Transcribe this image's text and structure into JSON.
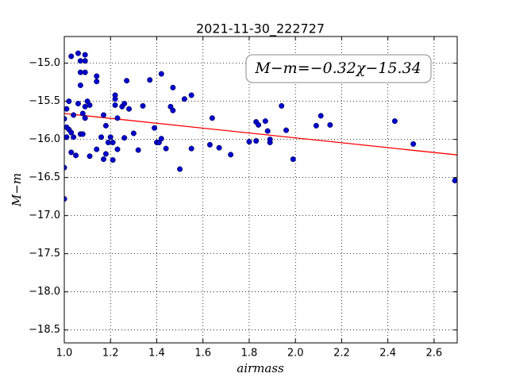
{
  "chart_data": {
    "type": "scatter",
    "title": "2021-11-30_222727",
    "x_label": "airmass",
    "y_label": "M−m",
    "annotation": "M−m=−0.32χ−15.34",
    "xlim": [
      1.0,
      2.7
    ],
    "ylim": [
      -18.67,
      -14.65
    ],
    "y_inverted": true,
    "grid": true,
    "xticks": [
      {
        "value": 1.0,
        "label": "1.0"
      },
      {
        "value": 1.2,
        "label": "1.2"
      },
      {
        "value": 1.4,
        "label": "1.4"
      },
      {
        "value": 1.6,
        "label": "1.6"
      },
      {
        "value": 1.8,
        "label": "1.8"
      },
      {
        "value": 2.0,
        "label": "2.0"
      },
      {
        "value": 2.2,
        "label": "2.2"
      },
      {
        "value": 2.4,
        "label": "2.4"
      },
      {
        "value": 2.6,
        "label": "2.6"
      }
    ],
    "yticks": [
      {
        "value": -15.0,
        "label": "−15.0"
      },
      {
        "value": -15.5,
        "label": "−15.5"
      },
      {
        "value": -16.0,
        "label": "−16.0"
      },
      {
        "value": -16.5,
        "label": "−16.5"
      },
      {
        "value": -17.0,
        "label": "−17.0"
      },
      {
        "value": -17.5,
        "label": "−17.5"
      },
      {
        "value": -18.0,
        "label": "−18.0"
      },
      {
        "value": -18.5,
        "label": "−18.5"
      }
    ],
    "fit": {
      "slope": -0.32,
      "intercept": -15.34,
      "color": "#ff0000"
    },
    "series": [
      {
        "color": "#0000cc",
        "x": [
          1.0,
          1.0,
          1.0,
          1.01,
          1.01,
          1.02,
          1.01,
          1.02,
          1.03,
          1.03,
          1.05,
          1.04,
          1.04,
          1.03,
          1.06,
          1.07,
          1.09,
          1.09,
          1.07,
          1.09,
          1.07,
          1.06,
          1.08,
          1.09,
          1.09,
          1.1,
          1.11,
          1.07,
          1.08,
          1.11,
          1.14,
          1.14,
          1.14,
          1.16,
          1.17,
          1.17,
          1.18,
          1.18,
          1.19,
          1.2,
          1.21,
          1.21,
          1.22,
          1.22,
          1.22,
          1.23,
          1.23,
          1.25,
          1.26,
          1.26,
          1.27,
          1.28,
          1.3,
          1.32,
          1.34,
          1.37,
          1.39,
          1.4,
          1.41,
          1.42,
          1.42,
          1.44,
          1.47,
          1.47,
          1.46,
          1.5,
          1.52,
          1.55,
          1.55,
          1.63,
          1.64,
          1.67,
          1.72,
          1.8,
          1.83,
          1.83,
          1.84,
          1.87,
          1.88,
          1.89,
          1.89,
          1.94,
          1.96,
          1.99,
          2.09,
          2.11,
          2.15,
          2.43,
          2.51,
          2.69
        ],
        "values": [
          -16.78,
          -16.37,
          -15.73,
          -15.97,
          -15.84,
          -15.87,
          -15.6,
          -15.5,
          -15.91,
          -16.17,
          -16.21,
          -15.68,
          -15.97,
          -14.91,
          -14.87,
          -14.97,
          -14.89,
          -14.97,
          -15.12,
          -15.12,
          -15.29,
          -15.53,
          -15.66,
          -15.72,
          -15.57,
          -15.5,
          -15.55,
          -15.93,
          -15.93,
          -16.22,
          -15.17,
          -15.24,
          -16.13,
          -15.97,
          -16.26,
          -15.68,
          -15.82,
          -16.19,
          -16.04,
          -15.97,
          -16.04,
          -16.27,
          -15.42,
          -15.47,
          -15.55,
          -16.13,
          -15.72,
          -15.57,
          -15.53,
          -15.98,
          -15.23,
          -15.6,
          -15.92,
          -16.14,
          -15.56,
          -15.22,
          -15.85,
          -16.04,
          -16.04,
          -15.99,
          -15.14,
          -16.12,
          -15.32,
          -15.62,
          -15.57,
          -16.39,
          -15.47,
          -15.42,
          -16.12,
          -16.07,
          -15.72,
          -16.11,
          -16.2,
          -16.03,
          -16.02,
          -15.77,
          -15.81,
          -15.76,
          -15.89,
          -16.04,
          -16.0,
          -15.56,
          -15.88,
          -16.26,
          -15.82,
          -15.69,
          -15.81,
          -15.76,
          -16.06,
          -16.54
        ]
      }
    ]
  }
}
